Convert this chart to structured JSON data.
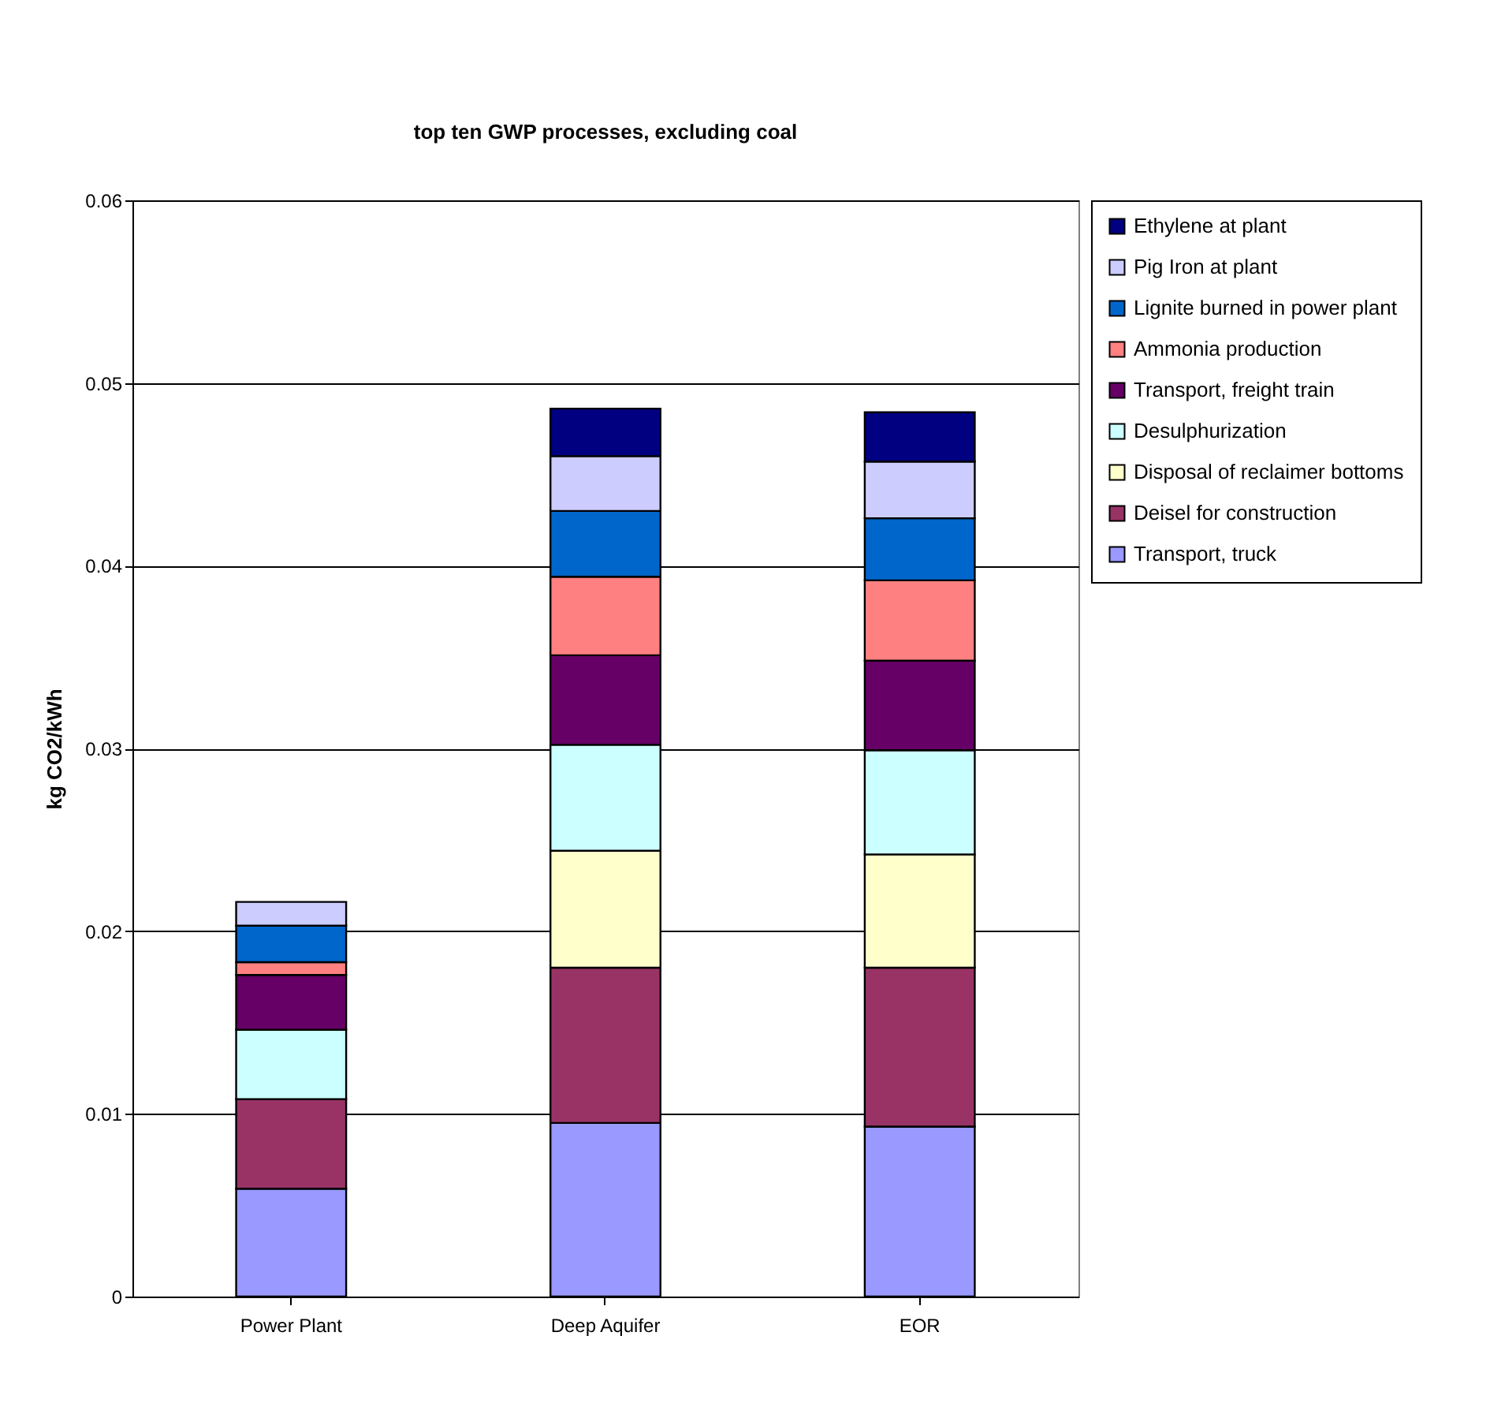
{
  "chart_data": {
    "type": "bar",
    "title": "top ten GWP processes, excluding coal",
    "ylabel": "kg CO2/kWh",
    "categories": [
      "Power Plant",
      "Deep Aquifer",
      "EOR"
    ],
    "stacked": true,
    "ylim": [
      0,
      0.06
    ],
    "yticks": [
      0,
      0.01,
      0.02,
      0.03,
      0.04,
      0.05,
      0.06
    ],
    "grid": "y",
    "legend": "right",
    "series": [
      {
        "name": "Transport, truck",
        "color": "#9999ff",
        "values": [
          0.0059,
          0.0095,
          0.0093
        ]
      },
      {
        "name": "Deisel for construction",
        "color": "#993366",
        "values": [
          0.0049,
          0.0085,
          0.0087
        ]
      },
      {
        "name": "Disposal of reclaimer bottoms",
        "color": "#ffffcc",
        "values": [
          null,
          0.0064,
          0.0062
        ]
      },
      {
        "name": "Desulphurization",
        "color": "#ccffff",
        "values": [
          0.0038,
          0.0058,
          0.0057
        ]
      },
      {
        "name": "Transport, freight train",
        "color": "#660066",
        "values": [
          0.003,
          0.0049,
          0.0049
        ]
      },
      {
        "name": "Ammonia production",
        "color": "#ff8080",
        "values": [
          0.0007,
          0.0043,
          0.0044
        ]
      },
      {
        "name": "Lignite burned in power plant",
        "color": "#0066cc",
        "values": [
          0.002,
          0.0036,
          0.0034
        ]
      },
      {
        "name": "Pig Iron at plant",
        "color": "#ccccff",
        "values": [
          0.0013,
          0.003,
          0.0031
        ]
      },
      {
        "name": "Ethylene at plant",
        "color": "#000080",
        "values": [
          null,
          0.0026,
          0.0027
        ]
      }
    ]
  }
}
